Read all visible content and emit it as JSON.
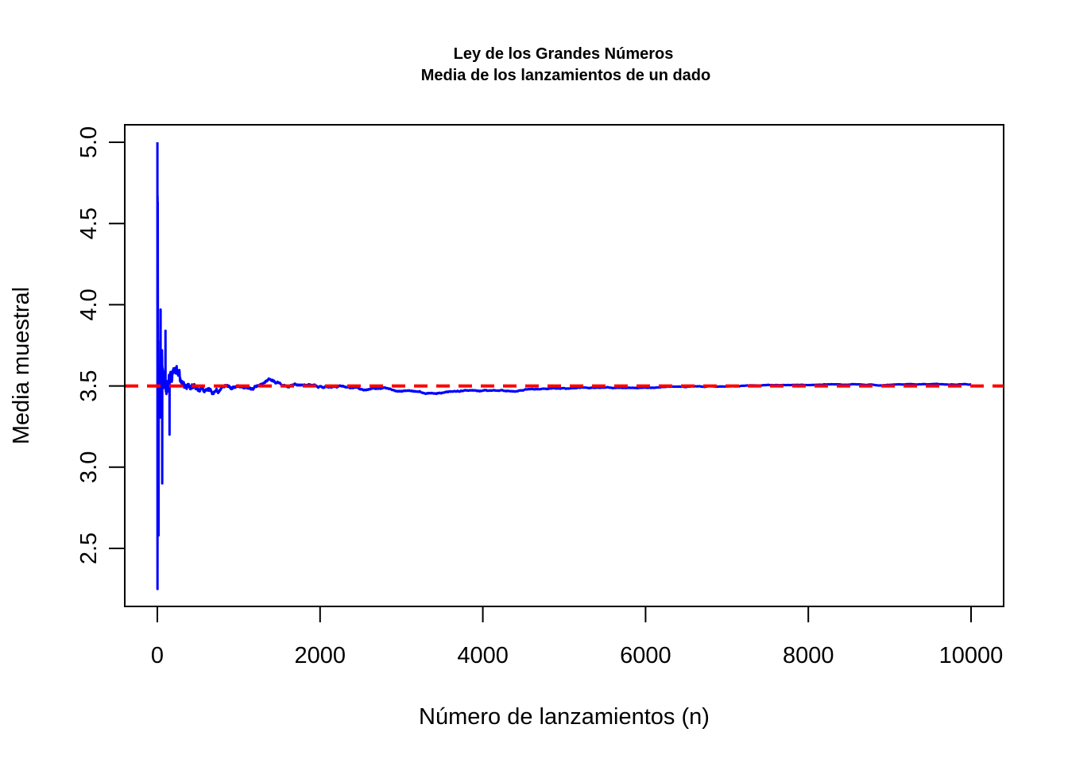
{
  "chart_data": {
    "type": "line",
    "title": "Ley de los Grandes Números",
    "subtitle": "Media de los lanzamientos de un dado",
    "xlabel": "Número de lanzamientos (n)",
    "ylabel": "Media muestral",
    "xlim": [
      -400,
      10400
    ],
    "ylim": [
      2.18,
      5.1
    ],
    "x_ticks": [
      0,
      2000,
      4000,
      6000,
      8000,
      10000
    ],
    "x_tick_labels": [
      "0",
      "2000",
      "4000",
      "6000",
      "8000",
      "10000"
    ],
    "y_ticks": [
      2.5,
      3.0,
      3.5,
      4.0,
      4.5,
      5.0
    ],
    "y_tick_labels": [
      "2.5",
      "3.0",
      "3.5",
      "4.0",
      "4.5",
      "5.0"
    ],
    "grid": false,
    "series": [
      {
        "color": "#0000ff",
        "style": "solid",
        "n": 10000,
        "envelope_points": [
          {
            "x": 1,
            "y": 5.0
          },
          {
            "x": 2,
            "y": 2.25
          },
          {
            "x": 5,
            "y": 4.63
          },
          {
            "x": 15,
            "y": 2.58
          },
          {
            "x": 40,
            "y": 3.97
          },
          {
            "x": 60,
            "y": 2.9
          },
          {
            "x": 100,
            "y": 3.84
          },
          {
            "x": 150,
            "y": 3.2
          },
          {
            "x": 500,
            "y": 3.69
          },
          {
            "x": 1000,
            "y": 3.36
          },
          {
            "x": 1400,
            "y": 3.64
          },
          {
            "x": 3000,
            "y": 3.43
          },
          {
            "x": 6400,
            "y": 3.58
          },
          {
            "x": 10000,
            "y": 3.5
          }
        ]
      }
    ],
    "reference_line": {
      "y": 3.5,
      "color": "#ff0000",
      "style": "dashed"
    }
  }
}
